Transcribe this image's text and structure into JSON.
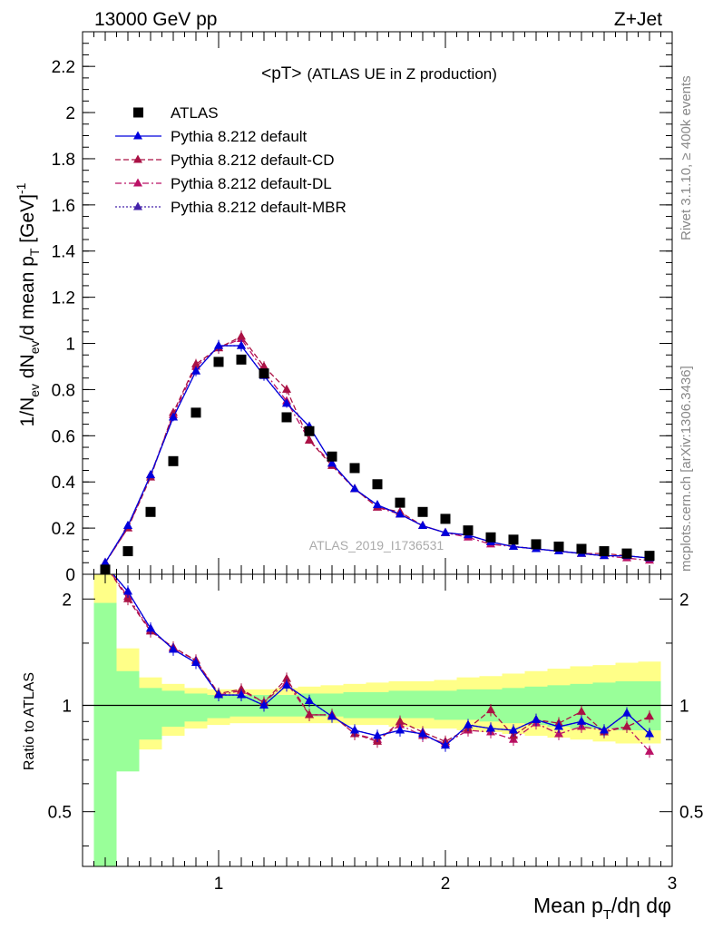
{
  "header": {
    "left": "13000 GeV pp",
    "right": "Z+Jet"
  },
  "side_text": {
    "rivet": "Rivet 3.1.10, ≥ 400k events",
    "mcplots": "mcplots.cern.ch [arXiv:1306.3436]"
  },
  "chart_data": [
    {
      "type": "scatter",
      "panel": "main",
      "title": "<pT> (ATLAS UE in Z production)",
      "title_main": "<pT>",
      "title_sub": "(ATLAS UE in Z production)",
      "watermark": "ATLAS_2019_I1736531",
      "ylabel": "1/N_ev dN_ev/d mean p_T [GeV]^-1",
      "xlim": [
        0.4,
        3.0
      ],
      "ylim": [
        0,
        2.35
      ],
      "yticks": [
        0,
        0.2,
        0.4,
        0.6,
        0.8,
        1,
        1.2,
        1.4,
        1.6,
        1.8,
        2,
        2.2
      ],
      "ytick_labels": [
        "0",
        "0.2",
        "0.4",
        "0.6",
        "0.8",
        "1",
        "1.2",
        "1.4",
        "1.6",
        "1.8",
        "2",
        "2.2"
      ],
      "legend_position": "top-left",
      "x": [
        0.5,
        0.6,
        0.7,
        0.8,
        0.9,
        1.0,
        1.1,
        1.2,
        1.3,
        1.4,
        1.5,
        1.6,
        1.7,
        1.8,
        1.9,
        2.0,
        2.1,
        2.2,
        2.3,
        2.4,
        2.5,
        2.6,
        2.7,
        2.8,
        2.9
      ],
      "series": [
        {
          "name": "ATLAS",
          "color": "#000000",
          "marker": "square",
          "values": [
            0.02,
            0.1,
            0.27,
            0.49,
            0.7,
            0.92,
            0.93,
            0.87,
            0.68,
            0.62,
            0.51,
            0.46,
            0.39,
            0.31,
            0.27,
            0.24,
            0.19,
            0.16,
            0.15,
            0.13,
            0.12,
            0.11,
            0.1,
            0.09,
            0.08
          ]
        },
        {
          "name": "Pythia 8.212 default",
          "color": "#0000dd",
          "marker": "triangle",
          "line": "solid",
          "values": [
            0.05,
            0.21,
            0.43,
            0.68,
            0.88,
            0.99,
            0.99,
            0.86,
            0.74,
            0.64,
            0.48,
            0.37,
            0.3,
            0.26,
            0.21,
            0.18,
            0.17,
            0.14,
            0.12,
            0.11,
            0.1,
            0.09,
            0.08,
            0.08,
            0.07
          ]
        },
        {
          "name": "Pythia 8.212 default-CD",
          "color": "#aa1144",
          "marker": "triangle",
          "line": "dashed",
          "values": [
            0.05,
            0.2,
            0.42,
            0.7,
            0.91,
            0.98,
            1.03,
            0.9,
            0.8,
            0.58,
            0.47,
            0.37,
            0.29,
            0.27,
            0.21,
            0.18,
            0.17,
            0.14,
            0.12,
            0.11,
            0.1,
            0.09,
            0.09,
            0.08,
            0.07
          ]
        },
        {
          "name": "Pythia 8.212 default-DL",
          "color": "#bb1166",
          "marker": "triangle",
          "line": "dashdot",
          "values": [
            0.05,
            0.2,
            0.43,
            0.69,
            0.9,
            0.98,
            1.02,
            0.88,
            0.75,
            0.58,
            0.48,
            0.37,
            0.29,
            0.26,
            0.21,
            0.18,
            0.16,
            0.13,
            0.12,
            0.11,
            0.1,
            0.09,
            0.08,
            0.07,
            0.06
          ]
        },
        {
          "name": "Pythia 8.212 default-MBR",
          "color": "#4422aa",
          "marker": "triangle",
          "line": "dotted",
          "values": [
            0.05,
            0.21,
            0.43,
            0.68,
            0.88,
            0.99,
            0.99,
            0.86,
            0.74,
            0.64,
            0.48,
            0.37,
            0.3,
            0.26,
            0.21,
            0.18,
            0.17,
            0.14,
            0.12,
            0.11,
            0.1,
            0.09,
            0.08,
            0.08,
            0.07
          ]
        }
      ]
    },
    {
      "type": "scatter",
      "panel": "ratio",
      "ylabel": "Ratio to ATLAS",
      "xlabel": "Mean p_T/dη dφ",
      "xlim": [
        0.4,
        3.0
      ],
      "ylim": [
        0.35,
        2.35
      ],
      "yscale": "log",
      "yticks": [
        0.5,
        1,
        2
      ],
      "ytick_labels": [
        "0.5",
        "1",
        "2"
      ],
      "xticks": [
        1,
        2,
        3
      ],
      "xtick_labels": [
        "1",
        "2",
        "3"
      ],
      "reference": 1,
      "bin_edges": [
        0.45,
        0.55,
        0.65,
        0.75,
        0.85,
        0.95,
        1.05,
        1.15,
        1.25,
        1.35,
        1.45,
        1.55,
        1.65,
        1.75,
        1.85,
        1.95,
        2.05,
        2.15,
        2.25,
        2.35,
        2.45,
        2.55,
        2.65,
        2.75,
        2.85,
        2.95
      ],
      "band_inner": {
        "color": "#99ff99",
        "lo": [
          0.35,
          0.65,
          0.8,
          0.87,
          0.9,
          0.92,
          0.93,
          0.93,
          0.93,
          0.93,
          0.93,
          0.92,
          0.92,
          0.92,
          0.92,
          0.91,
          0.91,
          0.9,
          0.89,
          0.88,
          0.87,
          0.86,
          0.86,
          0.85,
          0.85
        ],
        "hi": [
          1.95,
          1.25,
          1.12,
          1.1,
          1.08,
          1.07,
          1.07,
          1.07,
          1.07,
          1.08,
          1.08,
          1.09,
          1.09,
          1.1,
          1.1,
          1.1,
          1.11,
          1.11,
          1.12,
          1.13,
          1.14,
          1.15,
          1.16,
          1.17,
          1.17
        ]
      },
      "band_outer": {
        "color": "#ffff88",
        "lo": [
          0.35,
          0.66,
          0.75,
          0.82,
          0.86,
          0.88,
          0.89,
          0.89,
          0.89,
          0.89,
          0.89,
          0.88,
          0.88,
          0.87,
          0.86,
          0.86,
          0.85,
          0.84,
          0.83,
          0.82,
          0.81,
          0.8,
          0.79,
          0.78,
          0.78
        ],
        "hi": [
          2.35,
          1.45,
          1.2,
          1.15,
          1.12,
          1.11,
          1.11,
          1.11,
          1.12,
          1.13,
          1.14,
          1.15,
          1.16,
          1.17,
          1.17,
          1.18,
          1.2,
          1.21,
          1.23,
          1.25,
          1.27,
          1.29,
          1.3,
          1.32,
          1.33
        ]
      },
      "series": [
        {
          "name": "Pythia 8.212 default",
          "color": "#0000dd",
          "line": "solid",
          "values": [
            2.5,
            2.1,
            1.65,
            1.44,
            1.32,
            1.07,
            1.07,
            1.0,
            1.14,
            1.03,
            0.93,
            0.85,
            0.82,
            0.85,
            0.83,
            0.77,
            0.88,
            0.86,
            0.85,
            0.91,
            0.87,
            0.9,
            0.85,
            0.95,
            0.83
          ]
        },
        {
          "name": "Pythia 8.212 default-CD",
          "color": "#aa1144",
          "line": "dashed",
          "values": [
            2.5,
            2.0,
            1.62,
            1.46,
            1.34,
            1.08,
            1.11,
            1.02,
            1.19,
            0.94,
            0.94,
            0.83,
            0.79,
            0.9,
            0.84,
            0.79,
            0.86,
            0.97,
            0.82,
            0.91,
            0.89,
            0.96,
            0.84,
            0.87,
            0.93
          ]
        },
        {
          "name": "Pythia 8.212 default-DL",
          "color": "#bb1166",
          "line": "dashdot",
          "values": [
            2.5,
            2.03,
            1.63,
            1.45,
            1.34,
            1.07,
            1.1,
            1.02,
            1.16,
            0.94,
            0.94,
            0.83,
            0.8,
            0.88,
            0.82,
            0.78,
            0.85,
            0.84,
            0.8,
            0.89,
            0.83,
            0.87,
            0.85,
            0.87,
            0.74
          ]
        },
        {
          "name": "Pythia 8.212 default-MBR",
          "color": "#4422aa",
          "line": "dotted",
          "values": [
            2.5,
            2.1,
            1.65,
            1.44,
            1.32,
            1.07,
            1.07,
            1.0,
            1.14,
            1.03,
            0.93,
            0.85,
            0.82,
            0.85,
            0.83,
            0.77,
            0.88,
            0.86,
            0.85,
            0.91,
            0.87,
            0.9,
            0.85,
            0.95,
            0.83
          ]
        }
      ]
    }
  ]
}
